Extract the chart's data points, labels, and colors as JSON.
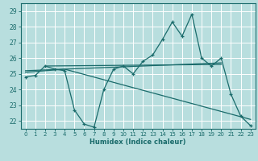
{
  "xlabel": "Humidex (Indice chaleur)",
  "bg_color": "#b8dede",
  "line_color": "#1a6b6b",
  "grid_color": "#d8eeee",
  "xlim": [
    -0.5,
    23.5
  ],
  "ylim": [
    21.5,
    29.5
  ],
  "yticks": [
    22,
    23,
    24,
    25,
    26,
    27,
    28,
    29
  ],
  "xticks": [
    0,
    1,
    2,
    3,
    4,
    5,
    6,
    7,
    8,
    9,
    10,
    11,
    12,
    13,
    14,
    15,
    16,
    17,
    18,
    19,
    20,
    21,
    22,
    23
  ],
  "line1_x": [
    0,
    1,
    2,
    3,
    4,
    5,
    6,
    7,
    8,
    9,
    10,
    11,
    12,
    13,
    14,
    15,
    16,
    17,
    18,
    19,
    20,
    21,
    22,
    23
  ],
  "line1_y": [
    24.8,
    24.9,
    25.5,
    25.3,
    25.2,
    22.7,
    21.8,
    21.6,
    24.0,
    25.3,
    25.5,
    25.0,
    25.8,
    26.2,
    27.2,
    28.3,
    27.4,
    28.8,
    26.0,
    25.5,
    26.0,
    23.7,
    22.3,
    21.7
  ],
  "line2_x": [
    0,
    4,
    23
  ],
  "line2_y": [
    25.1,
    25.3,
    22.1
  ],
  "line3_x": [
    2,
    20
  ],
  "line3_y": [
    25.5,
    25.6
  ],
  "line4_x": [
    0,
    20
  ],
  "line4_y": [
    25.2,
    25.7
  ]
}
